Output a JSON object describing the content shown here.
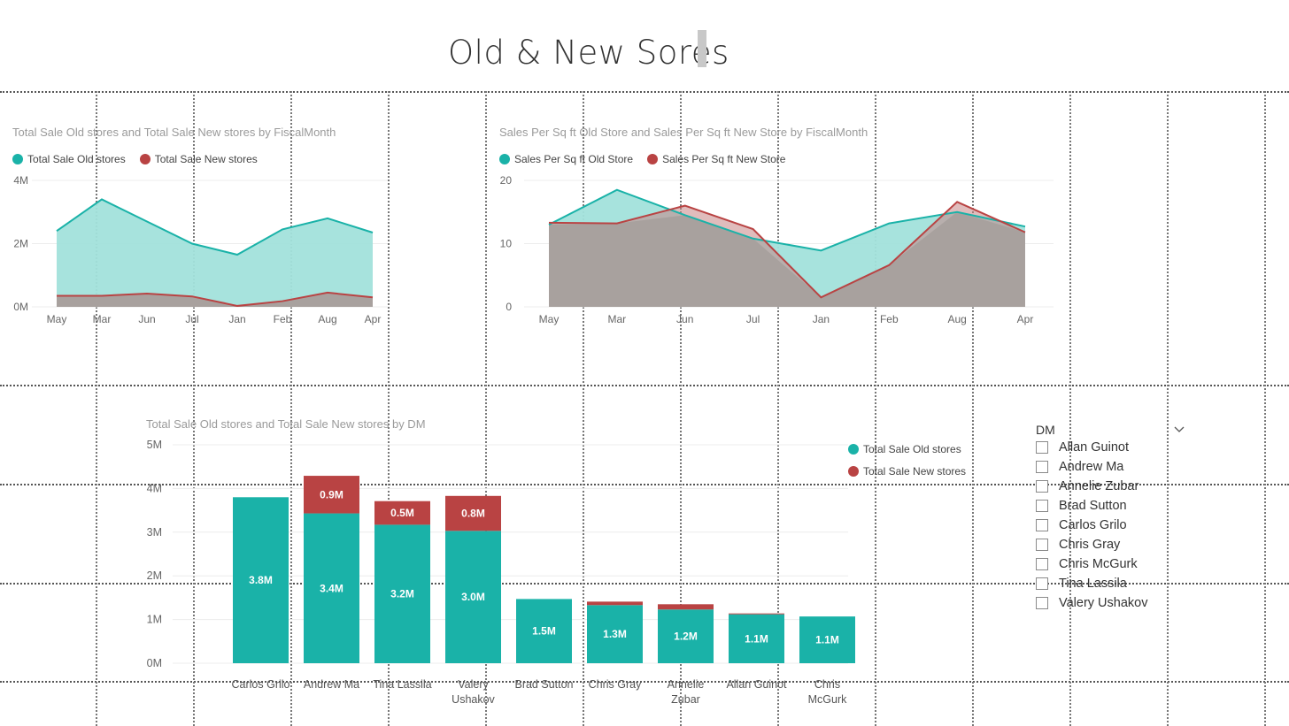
{
  "page": {
    "title": "Old & New Sores"
  },
  "colors": {
    "teal": "#1AB2A8",
    "red": "#B94343",
    "teal_fill": "#A2E1DB",
    "brown_fill": "#A8A19E"
  },
  "chart1_header": {
    "title": "Total Sale Old stores and Total Sale New stores by FiscalMonth",
    "legend_old": "Total Sale Old stores",
    "legend_new": "Total Sale New stores"
  },
  "chart2_header": {
    "title": "Sales Per Sq ft Old Store and Sales Per Sq ft New Store by FiscalMonth",
    "legend_old": "Sales Per Sq ft Old Store",
    "legend_new": "Sales Per Sq ft New Store"
  },
  "chart3_header": {
    "title": "Total Sale Old stores and Total Sale New stores by DM",
    "legend_old": "Total Sale Old stores",
    "legend_new": "Total Sale New stores"
  },
  "slicer": {
    "title": "DM",
    "chevron": "chevron-down-icon",
    "items": [
      "Allan Guinot",
      "Andrew Ma",
      "Annelie Zubar",
      "Brad Sutton",
      "Carlos Grilo",
      "Chris Gray",
      "Chris McGurk",
      "Tina Lassila",
      "Valery Ushakov"
    ]
  },
  "chart_data": [
    {
      "type": "area",
      "title": "Total Sale Old stores and Total Sale New stores by FiscalMonth",
      "categories": [
        "May",
        "Mar",
        "Jun",
        "Jul",
        "Jan",
        "Feb",
        "Aug",
        "Apr"
      ],
      "series": [
        {
          "name": "Total Sale Old stores",
          "values": [
            2.4,
            3.4,
            2.7,
            2.0,
            1.65,
            2.45,
            2.8,
            2.35
          ]
        },
        {
          "name": "Total Sale New stores",
          "values": [
            0.35,
            0.35,
            0.42,
            0.33,
            0.03,
            0.18,
            0.45,
            0.3
          ]
        }
      ],
      "yticks": [
        "0M",
        "2M",
        "4M"
      ],
      "ylim": [
        0,
        4
      ],
      "legend": "top-left"
    },
    {
      "type": "area",
      "title": "Sales Per Sq ft Old Store and Sales Per Sq ft New Store by FiscalMonth",
      "categories": [
        "May",
        "Mar",
        "Jun",
        "Jul",
        "Jan",
        "Feb",
        "Aug",
        "Apr"
      ],
      "series": [
        {
          "name": "Sales Per Sq ft Old Store",
          "values": [
            13,
            18.5,
            14.5,
            10.8,
            8.9,
            13.2,
            15,
            12.7
          ]
        },
        {
          "name": "Sales Per Sq ft New Store",
          "values": [
            13.3,
            13.2,
            16,
            12.3,
            1.5,
            6.6,
            16.6,
            11.8
          ]
        }
      ],
      "yticks": [
        "0",
        "10",
        "20"
      ],
      "ylim": [
        0,
        20
      ],
      "legend": "top-left"
    },
    {
      "type": "bar",
      "stacked": true,
      "title": "Total Sale Old stores and Total Sale New stores by DM",
      "categories": [
        "Carlos Grilo",
        "Andrew Ma",
        "Tina Lassila",
        "Valery Ushakov",
        "Brad Sutton",
        "Chris Gray",
        "Annelie Zubar",
        "Allan Guinot",
        "Chris McGurk"
      ],
      "category_lines": [
        [
          "Carlos Grilo"
        ],
        [
          "Andrew Ma"
        ],
        [
          "Tina Lassila"
        ],
        [
          "Valery",
          "Ushakov"
        ],
        [
          "Brad Sutton"
        ],
        [
          "Chris Gray"
        ],
        [
          "Annelie",
          "Zubar"
        ],
        [
          "Allan Guinot"
        ],
        [
          "Chris",
          "McGurk"
        ]
      ],
      "series": [
        {
          "name": "Total Sale Old stores",
          "values": [
            3.8,
            3.43,
            3.17,
            3.03,
            1.47,
            1.33,
            1.23,
            1.12,
            1.07
          ],
          "labels": [
            "3.8M",
            "3.4M",
            "3.2M",
            "3.0M",
            "1.5M",
            "1.3M",
            "1.2M",
            "1.1M",
            "1.1M"
          ]
        },
        {
          "name": "Total Sale New stores",
          "values": [
            0,
            0.86,
            0.54,
            0.8,
            0,
            0.08,
            0.12,
            0.02,
            0
          ],
          "labels": [
            "",
            "0.9M",
            "0.5M",
            "0.8M",
            "",
            "",
            "",
            "",
            ""
          ]
        }
      ],
      "yticks": [
        "0M",
        "1M",
        "2M",
        "3M",
        "4M",
        "5M"
      ],
      "ylim": [
        0,
        5
      ],
      "legend": "top-right"
    }
  ]
}
